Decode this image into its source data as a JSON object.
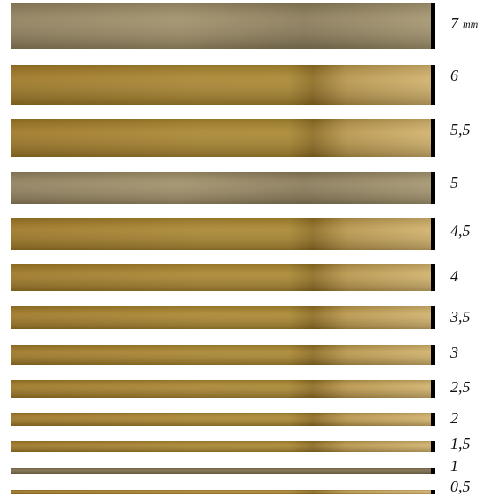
{
  "strips": [
    {
      "label": "7",
      "unit": "mm"
    },
    {
      "label": "6"
    },
    {
      "label": "5,5"
    },
    {
      "label": "5"
    },
    {
      "label": "4,5"
    },
    {
      "label": "4"
    },
    {
      "label": "3,5"
    },
    {
      "label": "3"
    },
    {
      "label": "2,5"
    },
    {
      "label": "2"
    },
    {
      "label": "1,5"
    },
    {
      "label": "1"
    },
    {
      "label": "0,5"
    }
  ]
}
